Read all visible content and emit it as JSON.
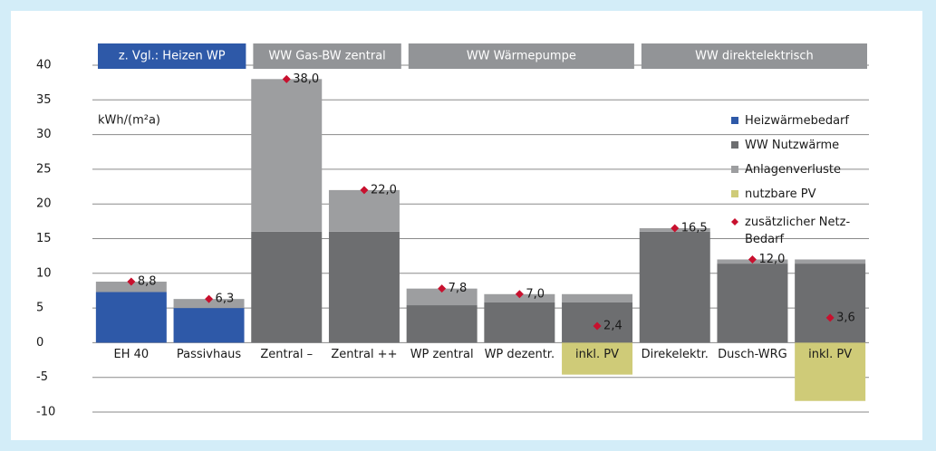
{
  "chart_data": {
    "type": "stacked-bar",
    "y_label": "kWh/(m²a)",
    "groups": [
      {
        "label": "z. Vgl.: Heizen WP",
        "span": 2,
        "color": "#2e59a8"
      },
      {
        "label": "WW Gas-BW zentral",
        "span": 2,
        "color": "#929497"
      },
      {
        "label": "WW Wärmepumpe",
        "span": 3,
        "color": "#929497"
      },
      {
        "label": "WW direktelektrisch",
        "span": 3,
        "color": "#929497"
      }
    ],
    "categories": [
      "EH 40",
      "Passivhaus",
      "Zentral –",
      "Zentral ++",
      "WP zentral",
      "WP dezentr.",
      "inkl. PV",
      "Direkelektr.",
      "Dusch-WRG",
      "inkl. PV"
    ],
    "series": [
      {
        "name": "Heizwärmebedarf",
        "color": "#2e59a8",
        "values": [
          7.3,
          5.0,
          0,
          0,
          0,
          0,
          0,
          0,
          0,
          0
        ]
      },
      {
        "name": "WW Nutzwärme",
        "color": "#6d6e70",
        "values": [
          0,
          0,
          16,
          16,
          5.4,
          5.8,
          5.8,
          16,
          11.4,
          11.4
        ]
      },
      {
        "name": "Anlagenverluste",
        "color": "#9d9ea0",
        "values": [
          1.5,
          1.3,
          22,
          6,
          2.4,
          1.2,
          1.2,
          0.5,
          0.6,
          0.6
        ]
      },
      {
        "name": "nutzbare PV",
        "color": "#cfcb78",
        "values": [
          0,
          0,
          0,
          0,
          0,
          0,
          -4.6,
          0,
          0,
          -8.4
        ]
      }
    ],
    "points": {
      "name": "zusätzlicher Netz-Bedarf",
      "color": "#c8102e",
      "values": [
        8.8,
        6.3,
        38.0,
        22.0,
        7.8,
        7.0,
        2.4,
        16.5,
        12.0,
        3.6
      ],
      "value_labels": [
        "8,8",
        "6,3",
        "38,0",
        "22,0",
        "7,8",
        "7,0",
        "2,4",
        "16,5",
        "12,0",
        "3,6"
      ]
    },
    "ylim": [
      -10,
      40
    ],
    "yticks": [
      -10,
      -5,
      0,
      5,
      10,
      15,
      20,
      25,
      30,
      35,
      40
    ],
    "grid": true
  }
}
